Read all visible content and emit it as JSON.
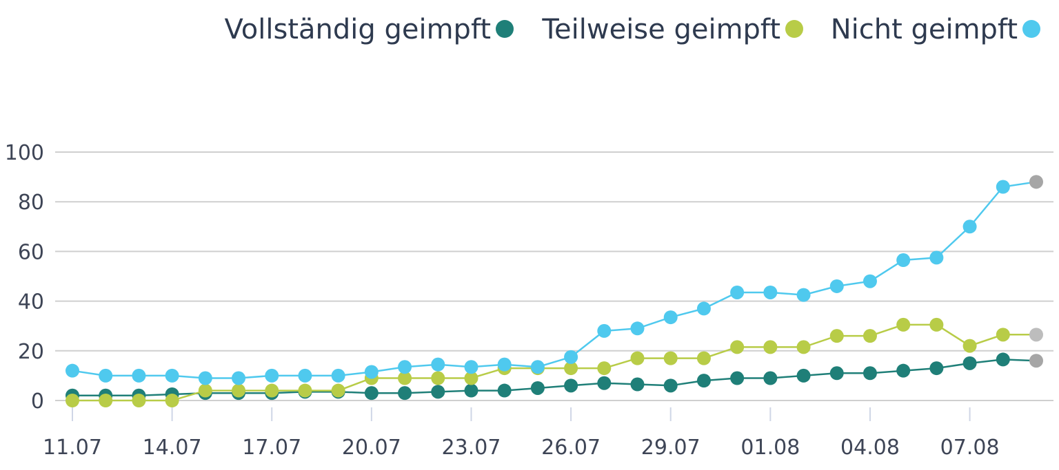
{
  "chart_data": {
    "type": "line",
    "title": "",
    "xlabel": "",
    "ylabel": "",
    "ylim": [
      0,
      100
    ],
    "yticks": [
      0,
      20,
      40,
      60,
      80,
      100
    ],
    "x_ticks": [
      "11.07",
      "14.07",
      "17.07",
      "20.07",
      "23.07",
      "26.07",
      "29.07",
      "01.08",
      "04.08",
      "07.08"
    ],
    "x": [
      "11.07",
      "12.07",
      "13.07",
      "14.07",
      "15.07",
      "16.07",
      "17.07",
      "18.07",
      "19.07",
      "20.07",
      "21.07",
      "22.07",
      "23.07",
      "24.07",
      "25.07",
      "26.07",
      "27.07",
      "28.07",
      "29.07",
      "30.07",
      "31.07",
      "01.08",
      "02.08",
      "03.08",
      "04.08",
      "05.08",
      "06.08",
      "07.08",
      "08.08",
      "09.08"
    ],
    "grid": true,
    "legend_position": "top-right",
    "last_point_provisional": true,
    "provisional_color": "#a6a6a6",
    "series": [
      {
        "name": "Vollständig geimpft",
        "color": "#1f7f78",
        "values": [
          2,
          2,
          2,
          2.5,
          3,
          3,
          3,
          3.5,
          3.5,
          3,
          3,
          3.5,
          4,
          4,
          5,
          6,
          7,
          6.5,
          6,
          8,
          9,
          9,
          10,
          11,
          11,
          12,
          13,
          15,
          16.5,
          16
        ]
      },
      {
        "name": "Teilweise geimpft",
        "color": "#b8cc47",
        "values": [
          0,
          0,
          0,
          0,
          4,
          4,
          4,
          4,
          4,
          9,
          9,
          9,
          9,
          13,
          13,
          13,
          13,
          17,
          17,
          17,
          21.5,
          21.5,
          21.5,
          26,
          26,
          30.5,
          30.5,
          22,
          26.5,
          26.5
        ]
      },
      {
        "name": "Nicht geimpft",
        "color": "#4fc9ee",
        "values": [
          12,
          10,
          10,
          10,
          9,
          9,
          10,
          10,
          10,
          11.5,
          13.5,
          14.5,
          13.5,
          14.5,
          13.5,
          17.5,
          28,
          29,
          33.5,
          37,
          43.5,
          43.5,
          42.5,
          46,
          48,
          56.5,
          57.5,
          70,
          86,
          88
        ]
      }
    ]
  }
}
